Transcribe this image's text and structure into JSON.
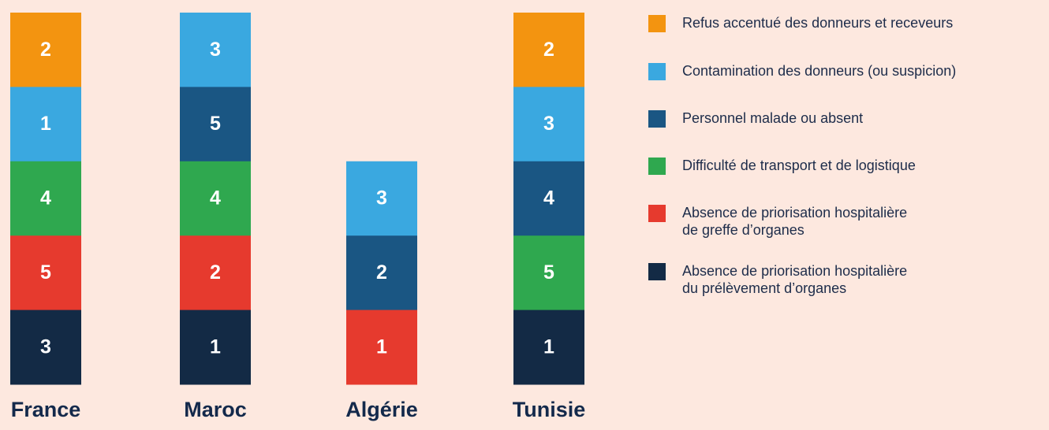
{
  "columns": [
    {
      "label": "France",
      "cells": [
        {
          "value": 2,
          "color": "#f39410"
        },
        {
          "value": 1,
          "color": "#3aa8e0"
        },
        {
          "value": 4,
          "color": "#2fa84f"
        },
        {
          "value": 5,
          "color": "#e63a2e"
        },
        {
          "value": 3,
          "color": "#132a45"
        }
      ]
    },
    {
      "label": "Maroc",
      "cells": [
        {
          "value": 3,
          "color": "#3aa8e0"
        },
        {
          "value": 5,
          "color": "#1a5683"
        },
        {
          "value": 4,
          "color": "#2fa84f"
        },
        {
          "value": 2,
          "color": "#e63a2e"
        },
        {
          "value": 1,
          "color": "#132a45"
        }
      ]
    },
    {
      "label": "Algérie",
      "cells": [
        {
          "value": 3,
          "color": "#3aa8e0"
        },
        {
          "value": 2,
          "color": "#1a5683"
        },
        {
          "value": 1,
          "color": "#e63a2e"
        }
      ]
    },
    {
      "label": "Tunisie",
      "cells": [
        {
          "value": 2,
          "color": "#f39410"
        },
        {
          "value": 3,
          "color": "#3aa8e0"
        },
        {
          "value": 4,
          "color": "#1a5683"
        },
        {
          "value": 5,
          "color": "#2fa84f"
        },
        {
          "value": 1,
          "color": "#132a45"
        }
      ]
    }
  ],
  "legend": [
    {
      "lines": [
        "Refus accentué des donneurs et receveurs"
      ],
      "color": "#f39410"
    },
    {
      "lines": [
        "Contamination des donneurs (ou suspicion)"
      ],
      "color": "#3aa8e0"
    },
    {
      "lines": [
        "Personnel malade ou absent"
      ],
      "color": "#1a5683"
    },
    {
      "lines": [
        "Difficulté de transport et de logistique"
      ],
      "color": "#2fa84f"
    },
    {
      "lines": [
        "Absence de priorisation hospitalière",
        "de greffe d’organes"
      ],
      "color": "#e63a2e"
    },
    {
      "lines": [
        "Absence de priorisation hospitalière",
        "du prélèvement d’organes"
      ],
      "color": "#132a45"
    }
  ]
}
